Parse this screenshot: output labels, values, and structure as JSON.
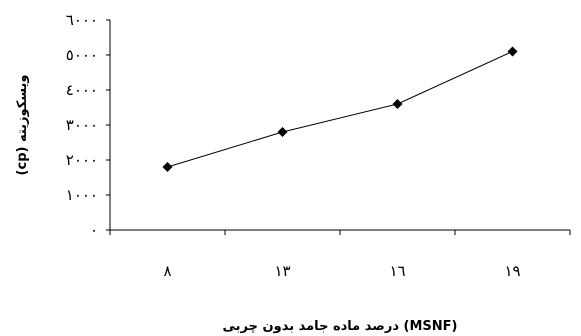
{
  "chart_data": {
    "type": "line",
    "categories": [
      "٨",
      "١٣",
      "١٦",
      "١٩"
    ],
    "values": [
      1800,
      2800,
      3600,
      5100
    ],
    "ytick_labels": [
      "٠",
      "١٠٠٠",
      "٢٠٠٠",
      "٣٠٠٠",
      "٤٠٠٠",
      "٥٠٠٠",
      "٦٠٠٠"
    ],
    "ytick_values": [
      0,
      1000,
      2000,
      3000,
      4000,
      5000,
      6000
    ],
    "ylim": [
      0,
      6000
    ],
    "xlabel": "(MSNF) درصد ماده جامد بدون چربی",
    "ylabel": "ویسکوزیته (cp)",
    "grid": false,
    "line_color": "#000000",
    "marker": "diamond"
  }
}
